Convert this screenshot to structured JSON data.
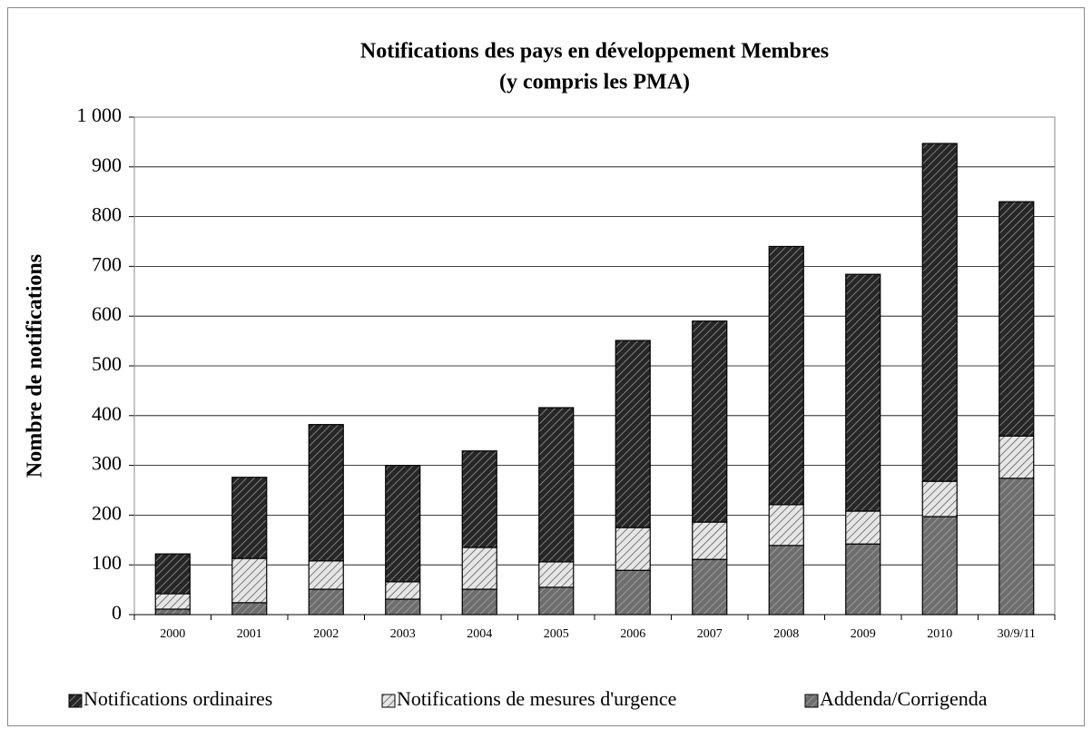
{
  "chart_data": {
    "type": "stacked_bar",
    "title": "Notifications des pays en développement Membres",
    "subtitle": "(y compris les PMA)",
    "y_label": "Nombre de notifications",
    "categories": [
      "2000",
      "2001",
      "2002",
      "2003",
      "2004",
      "2005",
      "2006",
      "2007",
      "2008",
      "2009",
      "2010",
      "30/9/11"
    ],
    "series": [
      {
        "name": "Addenda/Corrigenda",
        "color": "#6e6e6e",
        "values": [
          11,
          24,
          51,
          31,
          51,
          55,
          89,
          111,
          139,
          142,
          197,
          274
        ]
      },
      {
        "name": "Notifications de mesures d'urgence",
        "color": "#e6e6e6",
        "values": [
          31,
          89,
          57,
          35,
          84,
          51,
          86,
          75,
          82,
          66,
          71,
          85
        ]
      },
      {
        "name": "Notifications ordinaires",
        "color": "#262626",
        "values": [
          80,
          163,
          274,
          234,
          194,
          310,
          376,
          404,
          519,
          476,
          679,
          471
        ]
      }
    ],
    "ylim": [
      0,
      1000
    ],
    "yticks": [
      0,
      100,
      200,
      300,
      400,
      500,
      600,
      700,
      800,
      900,
      {
        "value": 1000,
        "label": "1 000"
      }
    ],
    "grid": true,
    "legend": "bottom"
  }
}
